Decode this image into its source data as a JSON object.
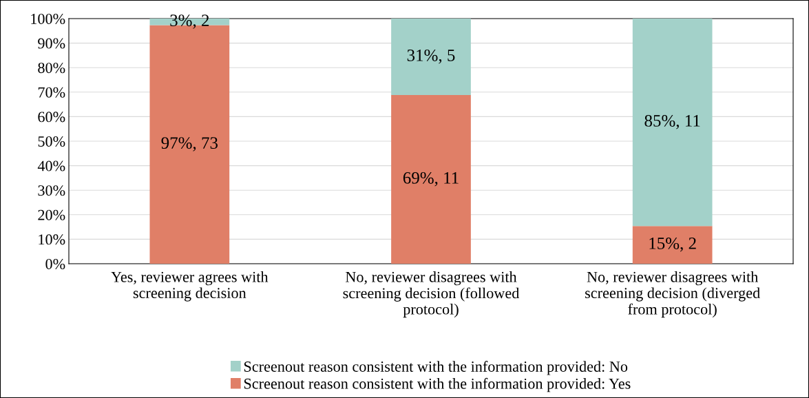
{
  "chart_data": {
    "type": "bar",
    "stacked": true,
    "categories": [
      "Yes, reviewer agrees with screening decision",
      "No, reviewer disagrees with screening decision (followed protocol)",
      "No, reviewer disagrees with screening decision (diverged from protocol)"
    ],
    "series": [
      {
        "name": "Screenout reason consistent with the information provided: Yes",
        "color": "#e07f67",
        "values": [
          97.3,
          68.8,
          15.4
        ],
        "value_labels": [
          "97%, 73",
          "69%, 11",
          "15%, 2"
        ]
      },
      {
        "name": "Screenout reason consistent with the information provided: No",
        "color": "#a3d1c9",
        "values": [
          2.7,
          31.2,
          84.6
        ],
        "value_labels": [
          "3%, 2",
          "31%, 5",
          "85%, 11"
        ]
      }
    ],
    "ylim": [
      0,
      100
    ],
    "yticks": [
      {
        "value": 0,
        "label": "0%"
      },
      {
        "value": 10,
        "label": "10%"
      },
      {
        "value": 20,
        "label": "20%"
      },
      {
        "value": 30,
        "label": "30%"
      },
      {
        "value": 40,
        "label": "40%"
      },
      {
        "value": 50,
        "label": "50%"
      },
      {
        "value": 60,
        "label": "60%"
      },
      {
        "value": 70,
        "label": "70%"
      },
      {
        "value": 80,
        "label": "80%"
      },
      {
        "value": 90,
        "label": "90%"
      },
      {
        "value": 100,
        "label": "100%"
      }
    ],
    "grid": "y",
    "legend": "bottom"
  }
}
